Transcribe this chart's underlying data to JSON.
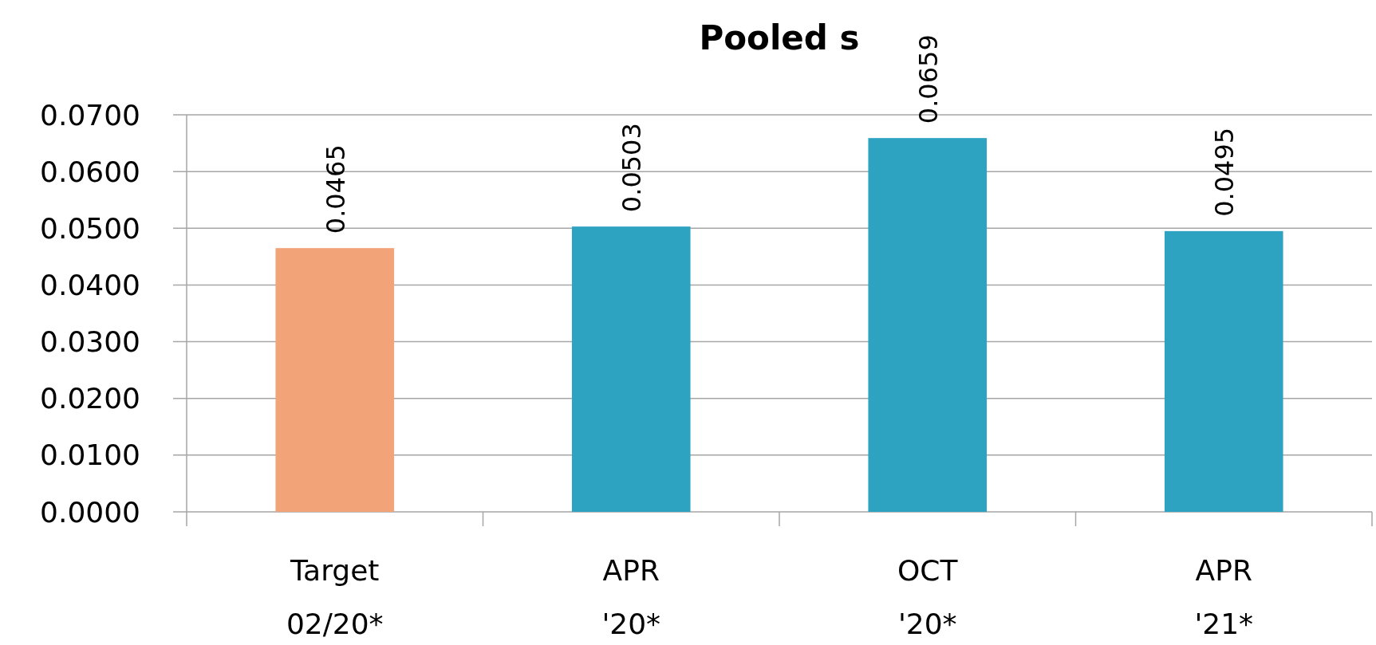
{
  "chart_data": {
    "type": "bar",
    "title": "Pooled s",
    "categories": [
      "Target\n02/20*",
      "APR\n'20*",
      "OCT\n'20*",
      "APR\n'21*"
    ],
    "values": [
      0.0465,
      0.0503,
      0.0659,
      0.0495
    ],
    "colors": [
      "#f2a378",
      "#2ea3c1",
      "#2ea3c1",
      "#2ea3c1"
    ],
    "ylim": [
      0,
      0.07
    ],
    "yticks": [
      {
        "value": 0,
        "label": "0.0000"
      },
      {
        "value": 0.01,
        "label": "0.0100"
      },
      {
        "value": 0.02,
        "label": "0.0200"
      },
      {
        "value": 0.03,
        "label": "0.0300"
      },
      {
        "value": 0.04,
        "label": "0.0400"
      },
      {
        "value": 0.05,
        "label": "0.0500"
      },
      {
        "value": 0.06,
        "label": "0.0600"
      },
      {
        "value": 0.07,
        "label": "0.0700"
      }
    ],
    "grid": "y",
    "data_labels": true
  }
}
